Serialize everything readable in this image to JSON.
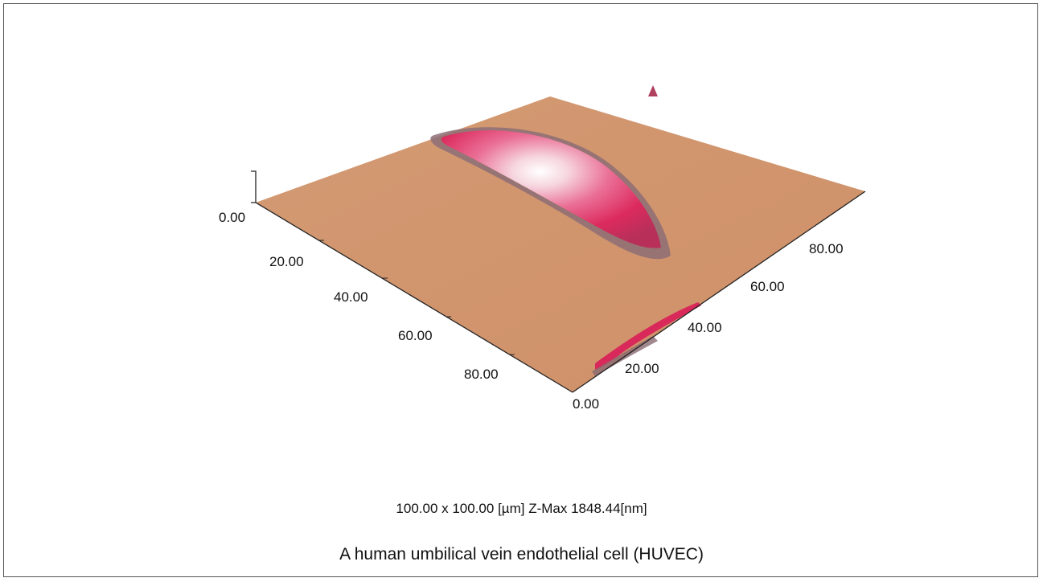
{
  "image": {
    "scan_info": "100.00 x 100.00 [µm]  Z-Max 1848.44[nm]",
    "title": "A human umbilical vein endothelial cell (HUVEC)"
  },
  "axes": {
    "x_ticks": [
      "0.00",
      "20.00",
      "40.00",
      "60.00",
      "80.00"
    ],
    "y_ticks": [
      "0.00",
      "20.00",
      "40.00",
      "60.00",
      "80.00"
    ]
  },
  "colors": {
    "substrate": "#D4976E",
    "cell_core": "#E0285A",
    "cell_highlight": "#FFFFFF",
    "cell_edge": "#8C6A78"
  }
}
